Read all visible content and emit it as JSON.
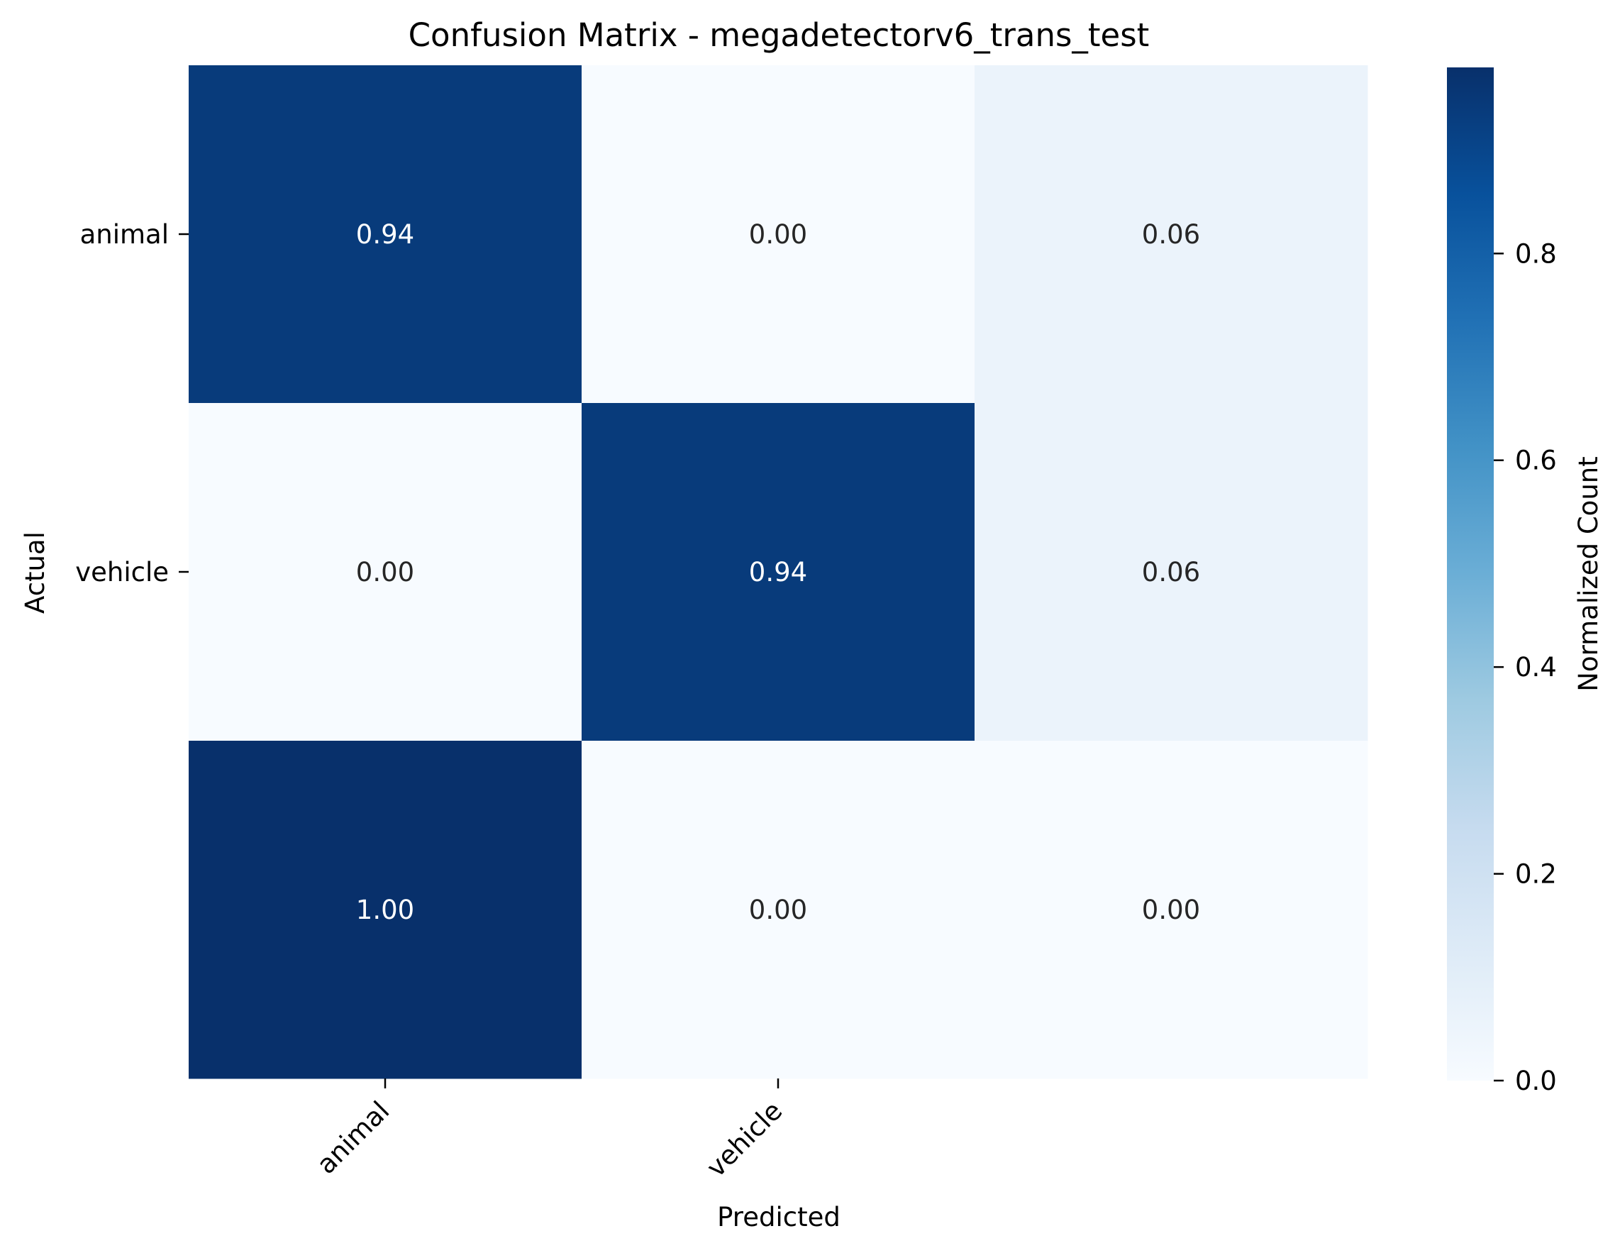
{
  "chart_data": {
    "type": "heatmap",
    "title": "Confusion Matrix - megadetectorv6_trans_test",
    "xlabel": "Predicted",
    "ylabel": "Actual",
    "x_tick_labels": [
      "animal",
      "vehicle",
      ""
    ],
    "y_tick_labels": [
      "animal",
      "vehicle",
      ""
    ],
    "values": [
      [
        0.94,
        0.0,
        0.06
      ],
      [
        0.0,
        0.94,
        0.06
      ],
      [
        1.0,
        0.0,
        0.0
      ]
    ],
    "cell_labels": [
      [
        "0.94",
        "0.00",
        "0.06"
      ],
      [
        "0.00",
        "0.94",
        "0.06"
      ],
      [
        "1.00",
        "0.00",
        "0.00"
      ]
    ],
    "colorbar": {
      "label": "Normalized Count",
      "range": [
        0,
        1
      ],
      "ticks": [
        0.0,
        0.2,
        0.4,
        0.6,
        0.8
      ],
      "tick_labels": [
        "0.0",
        "0.2",
        "0.4",
        "0.6",
        "0.8"
      ],
      "colormap": "Blues",
      "min_color": "#f7fbff",
      "max_color": "#08306b"
    },
    "grid": false,
    "legend": "none"
  }
}
